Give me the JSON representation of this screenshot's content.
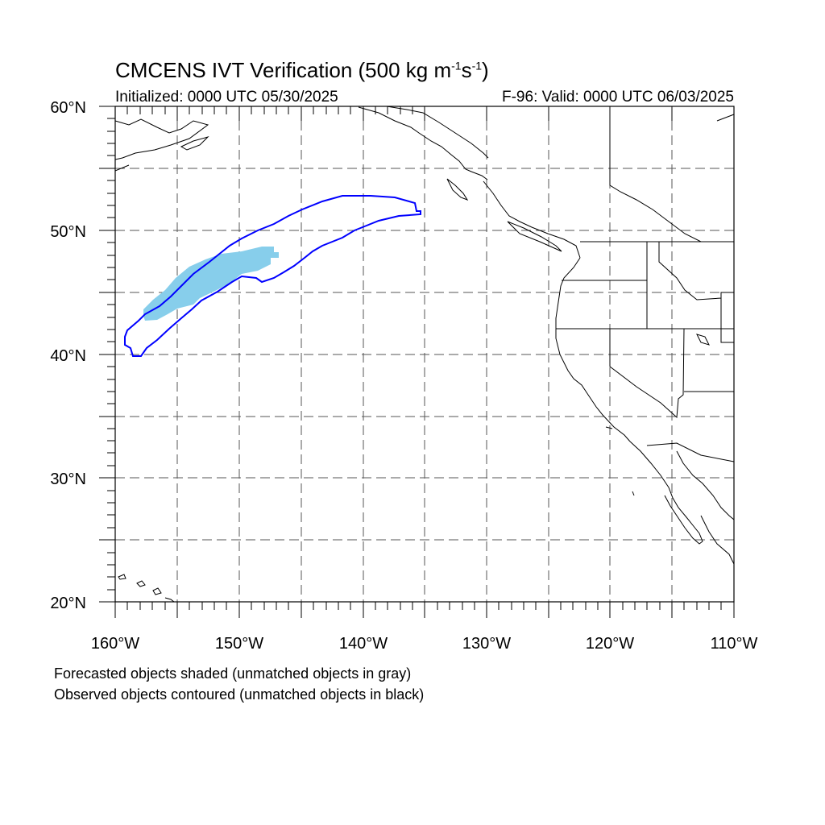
{
  "title": {
    "prefix": "CMCENS IVT Verification (500 kg m",
    "exp1": "-1",
    "mid": "s",
    "exp2": "-1",
    "suffix": ")"
  },
  "initialized": "Initialized: 0000 UTC 05/30/2025",
  "valid": "F-96: Valid: 0000 UTC 06/03/2025",
  "notes": {
    "forecast": "Forecasted objects shaded (unmatched objects in gray)",
    "observed": "Observed objects contoured (unmatched objects in black)"
  },
  "map": {
    "lon_range": [
      -160,
      -110
    ],
    "lat_range": [
      20,
      60
    ],
    "lon_labels": [
      "160°W",
      "150°W",
      "140°W",
      "130°W",
      "120°W",
      "110°W"
    ],
    "lat_labels": [
      "20°N",
      "30°N",
      "40°N",
      "50°N",
      "60°N"
    ],
    "grid": "dashed, every 5 degrees",
    "forecast_color": "#87ceeb",
    "observed_color": "#0000ff",
    "coast_color": "#000000"
  }
}
